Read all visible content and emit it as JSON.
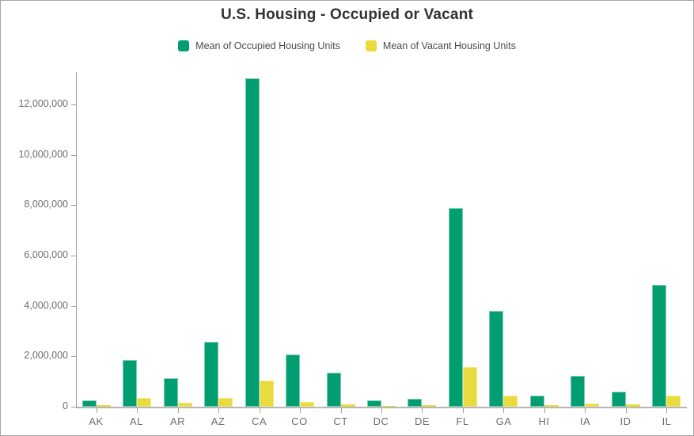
{
  "title": "U.S. Housing - Occupied or Vacant",
  "colors": {
    "occupied": "#009E70",
    "occupied_edge": "#7ACDB0",
    "vacant": "#E9DB3F",
    "vacant_edge": "#F2E97E",
    "title_text": "#323232",
    "legend_text": "#4a4a4a",
    "axis_line": "#9e9e9e",
    "axis_label": "#6e6e6e",
    "frame_border": "#a6a6a6"
  },
  "legend": {
    "items": [
      {
        "label": "Mean of Occupied Housing Units",
        "color": "#009E70"
      },
      {
        "label": "Mean of Vacant Housing Units",
        "color": "#E9DB3F"
      }
    ]
  },
  "axes": {
    "y_tick_labels": [
      "0",
      "2,000,000",
      "4,000,000",
      "6,000,000",
      "8,000,000",
      "10,000,000",
      "12,000,000"
    ],
    "x_tick_labels": [
      "AK",
      "AL",
      "AR",
      "AZ",
      "CA",
      "CO",
      "CT",
      "DC",
      "DE",
      "FL",
      "GA",
      "HI",
      "IA",
      "ID",
      "IL"
    ]
  },
  "chart_data": {
    "type": "bar",
    "title": "U.S. Housing - Occupied or Vacant",
    "categories": [
      "AK",
      "AL",
      "AR",
      "AZ",
      "CA",
      "CO",
      "CT",
      "DC",
      "DE",
      "FL",
      "GA",
      "HI",
      "IA",
      "ID",
      "IL"
    ],
    "series": [
      {
        "name": "Mean of Occupied Housing Units",
        "color": "#009E70",
        "values": [
          240000,
          1850000,
          1120000,
          2590000,
          13050000,
          2070000,
          1340000,
          240000,
          320000,
          7900000,
          3790000,
          430000,
          1230000,
          590000,
          4840000
        ]
      },
      {
        "name": "Mean of Vacant Housing Units",
        "color": "#E9DB3F",
        "values": [
          60000,
          330000,
          150000,
          360000,
          1040000,
          180000,
          90000,
          30000,
          50000,
          1570000,
          450000,
          60000,
          110000,
          80000,
          440000
        ]
      }
    ],
    "xlabel": "",
    "ylabel": "",
    "ylim": [
      0,
      13200000
    ],
    "yticks": [
      0,
      2000000,
      4000000,
      6000000,
      8000000,
      10000000,
      12000000
    ],
    "grid": false,
    "legend_position": "top"
  }
}
